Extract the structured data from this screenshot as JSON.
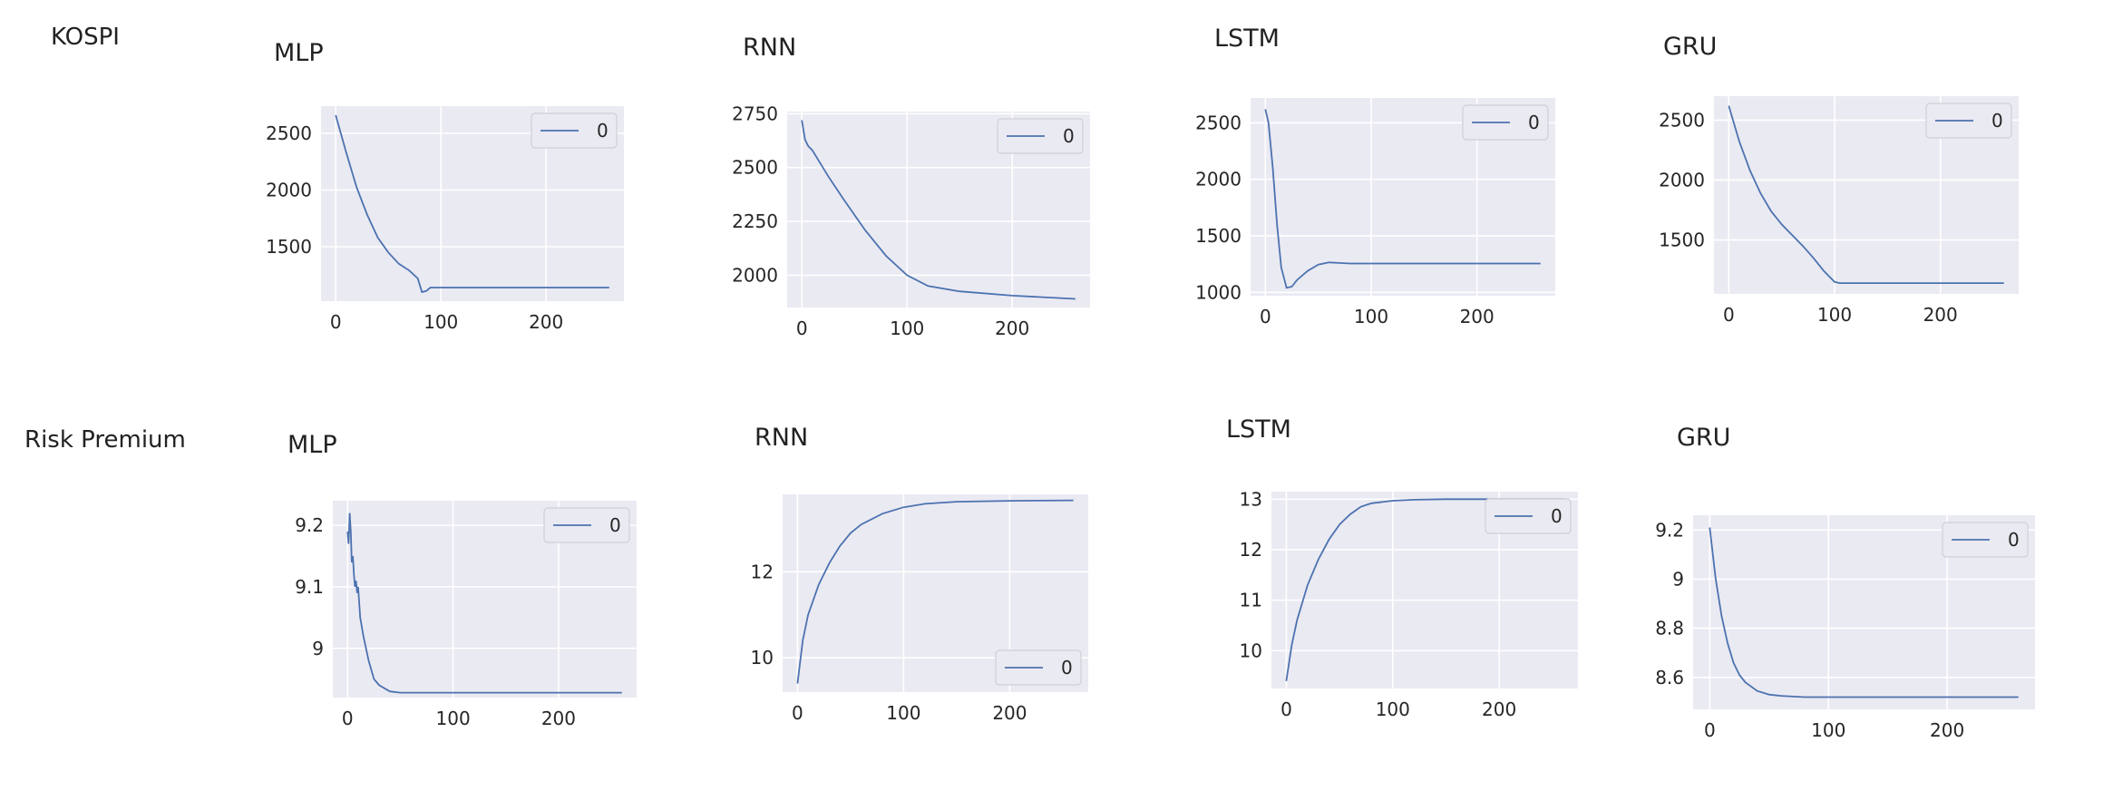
{
  "row_labels": [
    "KOSPI",
    "Risk Premium"
  ],
  "chart_data": [
    {
      "type": "line",
      "row": "KOSPI",
      "title": "MLP",
      "xlim": [
        -14,
        274
      ],
      "ylim": [
        1020,
        2740
      ],
      "xticks": [
        0,
        100,
        200
      ],
      "yticks": [
        1500,
        2000,
        2500
      ],
      "legend_position": "upper right",
      "series": [
        {
          "name": "0",
          "x": [
            0,
            10,
            20,
            30,
            40,
            50,
            60,
            70,
            78,
            82,
            86,
            90,
            100,
            150,
            200,
            260
          ],
          "y": [
            2660,
            2330,
            2020,
            1780,
            1580,
            1450,
            1350,
            1290,
            1220,
            1100,
            1110,
            1140,
            1140,
            1140,
            1140,
            1140
          ]
        }
      ]
    },
    {
      "type": "line",
      "row": "KOSPI",
      "title": "RNN",
      "xlim": [
        -14,
        274
      ],
      "ylim": [
        1850,
        2760
      ],
      "xticks": [
        0,
        100,
        200
      ],
      "yticks": [
        2000,
        2250,
        2500,
        2750
      ],
      "legend_position": "upper right",
      "series": [
        {
          "name": "0",
          "x": [
            0,
            3,
            6,
            10,
            15,
            25,
            40,
            60,
            80,
            100,
            120,
            150,
            200,
            260
          ],
          "y": [
            2720,
            2630,
            2600,
            2580,
            2540,
            2460,
            2350,
            2210,
            2090,
            2000,
            1950,
            1925,
            1905,
            1890
          ]
        }
      ]
    },
    {
      "type": "line",
      "row": "KOSPI",
      "title": "LSTM",
      "xlim": [
        -14,
        274
      ],
      "ylim": [
        970,
        2720
      ],
      "xticks": [
        0,
        100,
        200
      ],
      "yticks": [
        1000,
        1500,
        2000,
        2500
      ],
      "legend_position": "upper right",
      "series": [
        {
          "name": "0",
          "x": [
            0,
            3,
            7,
            11,
            15,
            20,
            25,
            30,
            40,
            50,
            60,
            70,
            80,
            100,
            150,
            200,
            260
          ],
          "y": [
            2620,
            2500,
            2100,
            1600,
            1220,
            1040,
            1050,
            1110,
            1190,
            1245,
            1265,
            1260,
            1255,
            1255,
            1255,
            1255,
            1255
          ]
        }
      ]
    },
    {
      "type": "line",
      "row": "KOSPI",
      "title": "GRU",
      "xlim": [
        -14,
        274
      ],
      "ylim": [
        1050,
        2700
      ],
      "xticks": [
        0,
        100,
        200
      ],
      "yticks": [
        1500,
        2000,
        2500
      ],
      "legend_position": "upper right",
      "series": [
        {
          "name": "0",
          "x": [
            0,
            10,
            20,
            30,
            40,
            50,
            60,
            70,
            80,
            90,
            100,
            105,
            110,
            150,
            200,
            260
          ],
          "y": [
            2620,
            2320,
            2080,
            1890,
            1740,
            1630,
            1540,
            1450,
            1350,
            1240,
            1150,
            1140,
            1140,
            1140,
            1140,
            1140
          ]
        }
      ]
    },
    {
      "type": "line",
      "row": "Risk Premium",
      "title": "MLP",
      "xlim": [
        -14,
        274
      ],
      "ylim": [
        8.92,
        9.24
      ],
      "xticks": [
        0,
        100,
        200
      ],
      "yticks": [
        9.0,
        9.1,
        9.2
      ],
      "legend_position": "upper right",
      "series": [
        {
          "name": "0",
          "x": [
            0,
            1,
            2,
            3,
            4,
            5,
            6,
            7,
            8,
            9,
            10,
            12,
            15,
            20,
            25,
            30,
            40,
            50,
            100,
            150,
            200,
            260
          ],
          "y": [
            9.19,
            9.17,
            9.22,
            9.19,
            9.14,
            9.15,
            9.12,
            9.1,
            9.11,
            9.09,
            9.1,
            9.05,
            9.02,
            8.98,
            8.95,
            8.94,
            8.93,
            8.928,
            8.928,
            8.928,
            8.928,
            8.928
          ]
        }
      ]
    },
    {
      "type": "line",
      "row": "Risk Premium",
      "title": "RNN",
      "xlim": [
        -14,
        274
      ],
      "ylim": [
        9.2,
        13.8
      ],
      "xticks": [
        0,
        100,
        200
      ],
      "yticks": [
        10,
        12
      ],
      "legend_position": "lower right",
      "series": [
        {
          "name": "0",
          "x": [
            0,
            5,
            10,
            20,
            30,
            40,
            50,
            60,
            80,
            100,
            120,
            150,
            200,
            260
          ],
          "y": [
            9.4,
            10.4,
            11.0,
            11.7,
            12.2,
            12.6,
            12.9,
            13.1,
            13.35,
            13.5,
            13.58,
            13.63,
            13.65,
            13.66
          ]
        }
      ]
    },
    {
      "type": "line",
      "row": "Risk Premium",
      "title": "LSTM",
      "xlim": [
        -14,
        274
      ],
      "ylim": [
        9.25,
        13.15
      ],
      "xticks": [
        0,
        100,
        200
      ],
      "yticks": [
        10,
        11,
        12,
        13
      ],
      "legend_position": "upper right",
      "series": [
        {
          "name": "0",
          "x": [
            0,
            5,
            10,
            20,
            30,
            40,
            50,
            60,
            70,
            80,
            100,
            120,
            150,
            200,
            260
          ],
          "y": [
            9.4,
            10.1,
            10.6,
            11.3,
            11.8,
            12.2,
            12.5,
            12.7,
            12.85,
            12.92,
            12.97,
            12.99,
            13.0,
            13.0,
            13.0
          ]
        }
      ]
    },
    {
      "type": "line",
      "row": "Risk Premium",
      "title": "GRU",
      "xlim": [
        -14,
        274
      ],
      "ylim": [
        8.47,
        9.26
      ],
      "xticks": [
        0,
        100,
        200
      ],
      "yticks": [
        8.6,
        8.8,
        9.0,
        9.2
      ],
      "legend_position": "upper right",
      "series": [
        {
          "name": "0",
          "x": [
            0,
            5,
            10,
            15,
            20,
            25,
            30,
            40,
            50,
            60,
            80,
            100,
            150,
            200,
            260
          ],
          "y": [
            9.21,
            9.0,
            8.85,
            8.74,
            8.66,
            8.61,
            8.58,
            8.545,
            8.53,
            8.525,
            8.52,
            8.52,
            8.52,
            8.52,
            8.52
          ]
        }
      ]
    }
  ]
}
